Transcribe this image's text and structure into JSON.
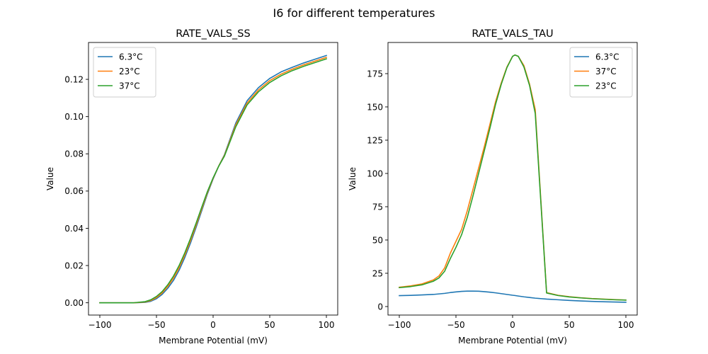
{
  "figure": {
    "suptitle": "I6 for different temperatures"
  },
  "colors": {
    "blue": "#1f77b4",
    "orange": "#ff7f0e",
    "green": "#2ca02c"
  },
  "chart_data": [
    {
      "type": "line",
      "title": "RATE_VALS_SS",
      "xlabel": "Membrane Potential (mV)",
      "ylabel": "Value",
      "xlim": [
        -110,
        110
      ],
      "ylim": [
        -0.0066,
        0.1398
      ],
      "xticks": [
        -100,
        -50,
        0,
        50,
        100
      ],
      "xtick_labels": [
        "−100",
        "−50",
        "0",
        "50",
        "100"
      ],
      "yticks": [
        0,
        0.02,
        0.04,
        0.06,
        0.08,
        0.1,
        0.12
      ],
      "ytick_labels": [
        "0.00",
        "0.02",
        "0.04",
        "0.06",
        "0.08",
        "0.10",
        "0.12"
      ],
      "grid": false,
      "legend_position": "upper-left",
      "x": [
        -100,
        -90,
        -80,
        -70,
        -60,
        -55,
        -50,
        -45,
        -40,
        -35,
        -30,
        -25,
        -20,
        -15,
        -10,
        -5,
        0,
        5,
        10,
        20,
        30,
        40,
        50,
        60,
        70,
        80,
        90,
        100
      ],
      "series": [
        {
          "name": "6.3°C",
          "color_key": "blue",
          "values": [
            0,
            0,
            0,
            0,
            0.0002,
            0.0008,
            0.0022,
            0.0045,
            0.0078,
            0.012,
            0.0175,
            0.0243,
            0.032,
            0.0405,
            0.0495,
            0.0585,
            0.0665,
            0.0735,
            0.0795,
            0.0965,
            0.1085,
            0.1155,
            0.1205,
            0.124,
            0.1265,
            0.1288,
            0.1308,
            0.1328
          ]
        },
        {
          "name": "23°C",
          "color_key": "orange",
          "values": [
            0,
            0,
            0,
            0,
            0.0004,
            0.0012,
            0.0028,
            0.0053,
            0.0088,
            0.0132,
            0.0188,
            0.0256,
            0.0333,
            0.0417,
            0.0505,
            0.0592,
            0.0668,
            0.0735,
            0.0792,
            0.0955,
            0.1073,
            0.1143,
            0.1193,
            0.1228,
            0.1255,
            0.1278,
            0.1298,
            0.1318
          ]
        },
        {
          "name": "37°C",
          "color_key": "green",
          "values": [
            0,
            0,
            0,
            0,
            0.0006,
            0.0016,
            0.0034,
            0.006,
            0.0097,
            0.0143,
            0.02,
            0.0268,
            0.0345,
            0.0428,
            0.0514,
            0.0598,
            0.0671,
            0.0734,
            0.0788,
            0.0945,
            0.1063,
            0.1133,
            0.1183,
            0.1219,
            0.1247,
            0.127,
            0.129,
            0.131
          ]
        }
      ]
    },
    {
      "type": "line",
      "title": "RATE_VALS_TAU",
      "xlabel": "Membrane Potential (mV)",
      "ylabel": "Value",
      "xlim": [
        -110,
        110
      ],
      "ylim": [
        -6.4,
        198.4
      ],
      "xticks": [
        -100,
        -50,
        0,
        50,
        100
      ],
      "xtick_labels": [
        "−100",
        "−50",
        "0",
        "50",
        "100"
      ],
      "yticks": [
        0,
        25,
        50,
        75,
        100,
        125,
        150,
        175
      ],
      "ytick_labels": [
        "0",
        "25",
        "50",
        "75",
        "100",
        "125",
        "150",
        "175"
      ],
      "grid": false,
      "legend_position": "upper-right",
      "x": [
        -100,
        -90,
        -80,
        -70,
        -65,
        -60,
        -55,
        -50,
        -45,
        -40,
        -35,
        -30,
        -25,
        -20,
        -15,
        -10,
        -5,
        0,
        2,
        5,
        10,
        15,
        20,
        30,
        40,
        50,
        60,
        70,
        80,
        90,
        100
      ],
      "series": [
        {
          "name": "6.3°C",
          "color_key": "blue",
          "values": [
            8.2,
            8.4,
            8.7,
            9.1,
            9.5,
            9.9,
            10.5,
            11.0,
            11.4,
            11.6,
            11.6,
            11.5,
            11.2,
            10.8,
            10.3,
            9.7,
            9.1,
            8.5,
            8.3,
            7.9,
            7.3,
            6.8,
            6.3,
            5.6,
            5.1,
            4.6,
            4.2,
            3.9,
            3.6,
            3.4,
            3.2
          ]
        },
        {
          "name": "37°C",
          "color_key": "orange",
          "values": [
            14.5,
            15.5,
            17.0,
            20.0,
            23.0,
            29.0,
            40.0,
            49.0,
            58.0,
            72.0,
            88.0,
            104.0,
            120.0,
            137.0,
            154.0,
            168.0,
            180.0,
            188.0,
            189.0,
            188.0,
            181.0,
            167.0,
            148.0,
            10.5,
            8.5,
            7.4,
            6.6,
            6.0,
            5.6,
            5.2,
            4.9
          ]
        },
        {
          "name": "23°C",
          "color_key": "green",
          "values": [
            14.2,
            15.0,
            16.3,
            19.0,
            21.5,
            26.5,
            36.0,
            44.5,
            54.0,
            67.0,
            83.0,
            100.0,
            117.0,
            134.0,
            152.0,
            167.0,
            179.5,
            188.0,
            189.0,
            188.0,
            180.0,
            166.0,
            145.0,
            10.2,
            8.3,
            7.2,
            6.5,
            5.9,
            5.5,
            5.1,
            4.8
          ]
        }
      ]
    }
  ]
}
